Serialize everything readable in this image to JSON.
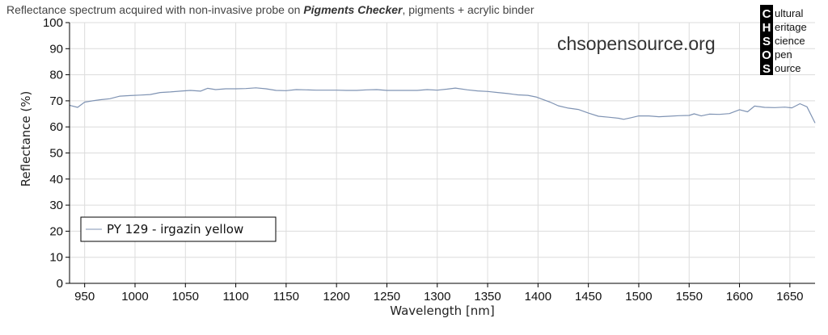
{
  "header": {
    "title_prefix": "Reflectance spectrum acquired with non-invasive probe on ",
    "title_emphasis": "Pigments Checker",
    "title_suffix": ", pigments + acrylic binder"
  },
  "watermark": "chsopensource.org",
  "logo": {
    "letters": [
      "C",
      "H",
      "S",
      "O",
      "S"
    ],
    "words": [
      "ultural",
      "eritage",
      "cience",
      "pen",
      "ource"
    ]
  },
  "colors": {
    "series": "#7f93b3",
    "grid": "#dcdcdc",
    "axis": "#000000",
    "logo_bg": "#000000"
  },
  "chart_data": {
    "type": "line",
    "title": "Reflectance spectrum acquired with non-invasive probe on Pigments Checker, pigments + acrylic binder",
    "xlabel": "Wavelength [nm]",
    "ylabel": "Reflectance (%)",
    "xlim": [
      935,
      1675
    ],
    "ylim": [
      0,
      100
    ],
    "xticks": [
      950,
      1000,
      1050,
      1100,
      1150,
      1200,
      1250,
      1300,
      1350,
      1400,
      1450,
      1500,
      1550,
      1600,
      1650
    ],
    "yticks": [
      0,
      10,
      20,
      30,
      40,
      50,
      60,
      70,
      80,
      90,
      100
    ],
    "grid": true,
    "legend_position": "bottom-left",
    "series": [
      {
        "name": "PY 129 - irgazin yellow",
        "x": [
          935,
          943,
          950,
          958,
          965,
          975,
          985,
          995,
          1005,
          1015,
          1025,
          1035,
          1045,
          1055,
          1065,
          1072,
          1080,
          1090,
          1100,
          1110,
          1120,
          1130,
          1140,
          1150,
          1160,
          1170,
          1180,
          1190,
          1200,
          1210,
          1220,
          1230,
          1240,
          1250,
          1260,
          1270,
          1280,
          1290,
          1300,
          1310,
          1318,
          1330,
          1340,
          1350,
          1360,
          1370,
          1380,
          1390,
          1398,
          1405,
          1412,
          1420,
          1430,
          1440,
          1450,
          1460,
          1470,
          1480,
          1485,
          1492,
          1500,
          1510,
          1520,
          1530,
          1540,
          1550,
          1555,
          1562,
          1570,
          1580,
          1590,
          1600,
          1608,
          1615,
          1625,
          1635,
          1645,
          1652,
          1660,
          1667,
          1675
        ],
        "y": [
          68.3,
          67.5,
          69.5,
          70.0,
          70.4,
          70.8,
          71.8,
          72.0,
          72.2,
          72.4,
          73.2,
          73.4,
          73.7,
          74.0,
          73.7,
          74.8,
          74.3,
          74.6,
          74.6,
          74.7,
          75.0,
          74.6,
          74.0,
          73.9,
          74.3,
          74.2,
          74.1,
          74.1,
          74.1,
          74.0,
          74.0,
          74.2,
          74.3,
          74.0,
          74.0,
          74.0,
          74.0,
          74.3,
          74.1,
          74.5,
          74.9,
          74.2,
          73.8,
          73.6,
          73.2,
          72.8,
          72.3,
          72.1,
          71.5,
          70.5,
          69.5,
          68.1,
          67.2,
          66.7,
          65.3,
          64.1,
          63.7,
          63.3,
          62.9,
          63.5,
          64.2,
          64.2,
          63.9,
          64.1,
          64.3,
          64.4,
          65.0,
          64.2,
          64.9,
          64.8,
          65.1,
          66.6,
          65.8,
          68.0,
          67.5,
          67.4,
          67.6,
          67.3,
          68.9,
          67.7,
          61.5
        ]
      }
    ]
  }
}
